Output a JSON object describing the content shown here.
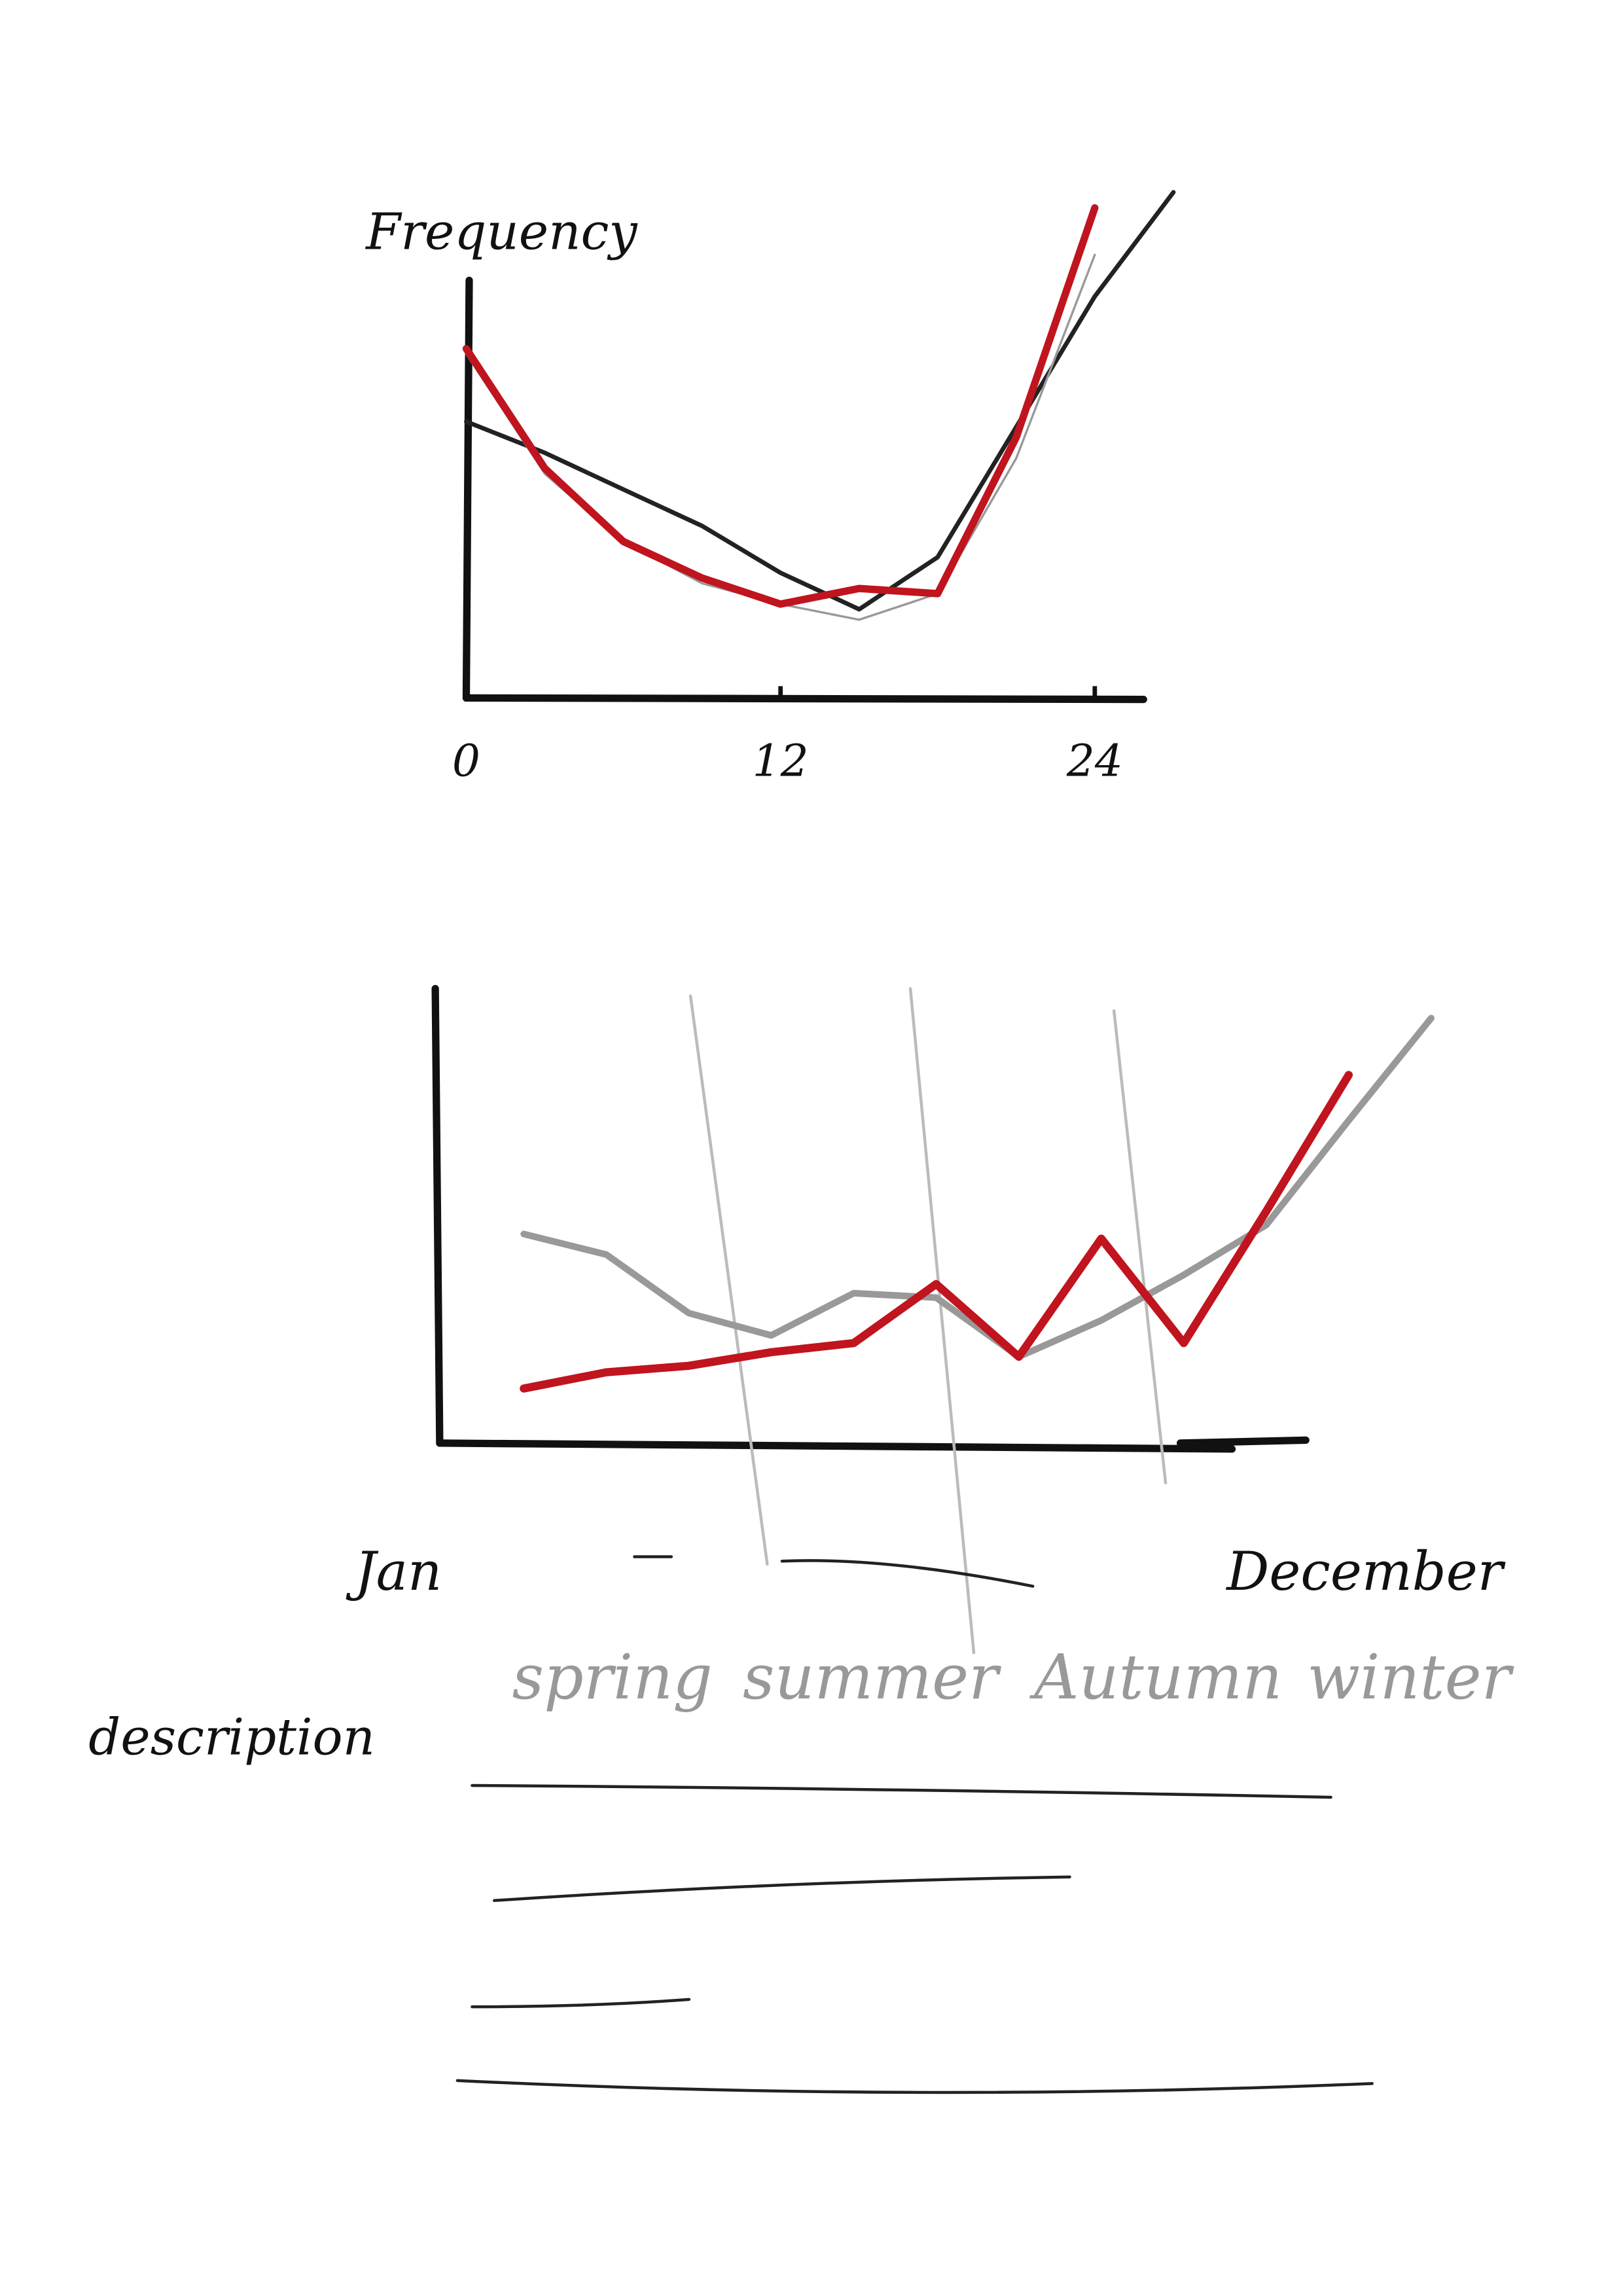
{
  "chart_data": [
    {
      "type": "line",
      "y_label": "Frequency",
      "x": [
        0,
        3,
        6,
        9,
        12,
        15,
        18,
        21,
        24,
        27
      ],
      "xlim": [
        0,
        28
      ],
      "xticks": [
        0,
        12,
        24
      ],
      "ylim": [
        0,
        105
      ],
      "series": [
        {
          "color": "#222222",
          "values": [
            53,
            47,
            40,
            33,
            24,
            17,
            27,
            52,
            77,
            97
          ]
        },
        {
          "color": "#999999",
          "values": [
            66,
            43,
            30,
            22,
            18,
            15,
            20,
            46,
            85,
            null
          ]
        },
        {
          "color": "#c0141e",
          "values": [
            67,
            44,
            30,
            23,
            18,
            21,
            20,
            50,
            94,
            null
          ]
        }
      ]
    },
    {
      "type": "line",
      "categories": [
        "Jan",
        null,
        null,
        null,
        null,
        null,
        null,
        null,
        null,
        null,
        null,
        "December"
      ],
      "ylim": [
        0,
        100
      ],
      "annotations": [
        "spring",
        "summer",
        "Autumn",
        "winter"
      ],
      "series": [
        {
          "color": "#999999",
          "values": [
            46,
            41.5,
            28.6,
            23.7,
            33,
            32,
            19,
            27,
            37,
            48,
            71,
            93.5
          ]
        },
        {
          "color": "#c0141e",
          "values": [
            12,
            15.6,
            17,
            20,
            22,
            35,
            19,
            45,
            22,
            51,
            81,
            null
          ]
        }
      ]
    }
  ],
  "description_label": "description"
}
